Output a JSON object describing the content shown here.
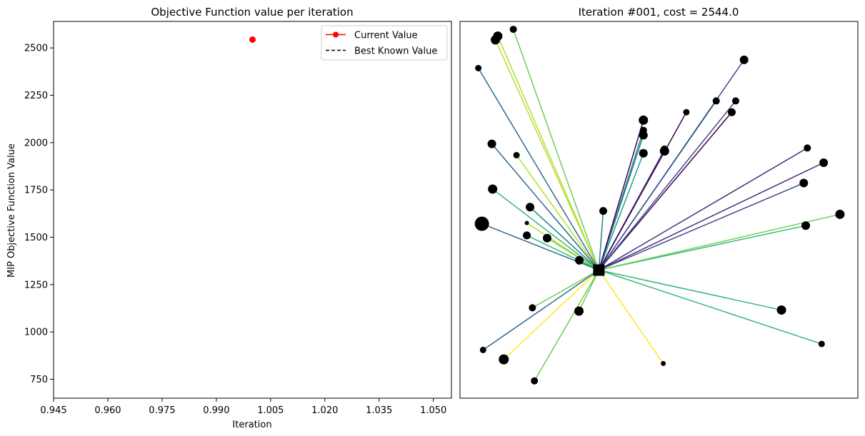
{
  "chart_data": [
    {
      "type": "line",
      "title": "Objective Function value per iteration",
      "xlabel": "Iteration",
      "ylabel": "MIP Objective Function Value",
      "xlim": [
        0.945,
        1.055
      ],
      "ylim": [
        650,
        2640
      ],
      "xticks": [
        0.945,
        0.96,
        0.975,
        0.99,
        1.005,
        1.02,
        1.035,
        1.05
      ],
      "xtick_labels": [
        "0.945",
        "0.960",
        "0.975",
        "0.990",
        "1.005",
        "1.020",
        "1.035",
        "1.050"
      ],
      "yticks": [
        750,
        1000,
        1250,
        1500,
        1750,
        2000,
        2250,
        2500
      ],
      "ytick_labels": [
        "750",
        "1000",
        "1250",
        "1500",
        "1750",
        "2000",
        "2250",
        "2500"
      ],
      "legend_position": "top-right",
      "series": [
        {
          "name": "Current Value",
          "color": "#ff0000",
          "style": "solid-marker",
          "x": [
            1.0
          ],
          "y": [
            2544
          ]
        },
        {
          "name": "Best Known Value",
          "color": "#000000",
          "style": "dashed",
          "x": [],
          "y": []
        }
      ]
    },
    {
      "type": "scatter",
      "title": "Iteration #001, cost = 2544.0",
      "axes_visible": false,
      "facility": {
        "x": 0.349,
        "y": 0.34
      },
      "line_colors": [
        "#440154",
        "#482878",
        "#3e4a89",
        "#31688e",
        "#26828e",
        "#1f9e89",
        "#35b779",
        "#6ece58",
        "#b5de2b",
        "#fde725"
      ],
      "customers": [
        {
          "x": 0.089,
          "y": 0.951,
          "size": 6.5,
          "color": 8
        },
        {
          "x": 0.142,
          "y": 0.645,
          "size": 4.5,
          "color": 8
        },
        {
          "x": 0.08,
          "y": 0.675,
          "size": 6.0,
          "color": 3
        },
        {
          "x": 0.219,
          "y": 0.425,
          "size": 6.0,
          "color": 7
        },
        {
          "x": 0.3,
          "y": 0.366,
          "size": 6.0,
          "color": 6
        },
        {
          "x": 0.168,
          "y": 0.432,
          "size": 5.5,
          "color": 6
        },
        {
          "x": 0.055,
          "y": 0.463,
          "size": 10.0,
          "color": 3
        },
        {
          "x": 0.168,
          "y": 0.465,
          "size": 3.0,
          "color": 8
        },
        {
          "x": 0.176,
          "y": 0.507,
          "size": 6.0,
          "color": 4
        },
        {
          "x": 0.082,
          "y": 0.555,
          "size": 6.5,
          "color": 6
        },
        {
          "x": 0.046,
          "y": 0.876,
          "size": 4.5,
          "color": 3
        },
        {
          "x": 0.095,
          "y": 0.961,
          "size": 6.5,
          "color": 8
        },
        {
          "x": 0.134,
          "y": 0.979,
          "size": 5.0,
          "color": 7
        },
        {
          "x": 0.36,
          "y": 0.497,
          "size": 5.5,
          "color": 4
        },
        {
          "x": 0.461,
          "y": 0.65,
          "size": 6.0,
          "color": 5
        },
        {
          "x": 0.461,
          "y": 0.711,
          "size": 5.0,
          "color": 4
        },
        {
          "x": 0.461,
          "y": 0.698,
          "size": 6.0,
          "color": 4
        },
        {
          "x": 0.461,
          "y": 0.738,
          "size": 6.5,
          "color": 0
        },
        {
          "x": 0.514,
          "y": 0.656,
          "size": 6.5,
          "color": 2
        },
        {
          "x": 0.514,
          "y": 0.66,
          "size": 5.5,
          "color": 2
        },
        {
          "x": 0.644,
          "y": 0.789,
          "size": 5.0,
          "color": 5
        },
        {
          "x": 0.683,
          "y": 0.759,
          "size": 5.5,
          "color": 0
        },
        {
          "x": 0.693,
          "y": 0.789,
          "size": 5.0,
          "color": 2
        },
        {
          "x": 0.714,
          "y": 0.898,
          "size": 6.0,
          "color": 2
        },
        {
          "x": 0.569,
          "y": 0.759,
          "size": 4.5,
          "color": 0
        },
        {
          "x": 0.873,
          "y": 0.664,
          "size": 5.0,
          "color": 1
        },
        {
          "x": 0.864,
          "y": 0.571,
          "size": 6.0,
          "color": 2
        },
        {
          "x": 0.914,
          "y": 0.625,
          "size": 6.0,
          "color": 1
        },
        {
          "x": 0.869,
          "y": 0.458,
          "size": 6.0,
          "color": 6
        },
        {
          "x": 0.955,
          "y": 0.488,
          "size": 6.5,
          "color": 7
        },
        {
          "x": 0.808,
          "y": 0.234,
          "size": 6.5,
          "color": 6
        },
        {
          "x": 0.909,
          "y": 0.144,
          "size": 4.5,
          "color": 6
        },
        {
          "x": 0.511,
          "y": 0.092,
          "size": 3.5,
          "color": 9
        },
        {
          "x": 0.299,
          "y": 0.231,
          "size": 6.5,
          "color": 7
        },
        {
          "x": 0.187,
          "y": 0.046,
          "size": 5.0,
          "color": 7
        },
        {
          "x": 0.11,
          "y": 0.103,
          "size": 7.0,
          "color": 9
        },
        {
          "x": 0.058,
          "y": 0.128,
          "size": 4.5,
          "color": 3
        },
        {
          "x": 0.182,
          "y": 0.24,
          "size": 5.0,
          "color": 7
        }
      ]
    }
  ]
}
